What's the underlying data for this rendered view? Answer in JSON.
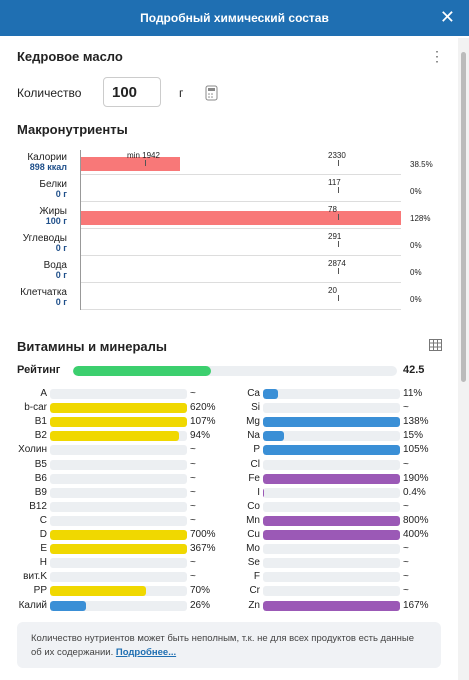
{
  "header": {
    "title": "Подробный химический состав"
  },
  "product": {
    "name": "Кедровое масло",
    "quantity_label": "Количество",
    "quantity": 100,
    "unit": "г"
  },
  "macros": {
    "title": "Макронутриенты",
    "bar_color": "#f87878",
    "rows": [
      {
        "name": "Калории",
        "amount": "898 ккал",
        "min": "min 1942",
        "norm": 2330,
        "percent": 38.5,
        "percent_label": "38.5%"
      },
      {
        "name": "Белки",
        "amount": "0 г",
        "norm": 117,
        "percent": 0,
        "percent_label": "0%"
      },
      {
        "name": "Жиры",
        "amount": "100 г",
        "norm": 78,
        "percent": 128,
        "percent_label": "128%"
      },
      {
        "name": "Углеводы",
        "amount": "0 г",
        "norm": 291,
        "percent": 0,
        "percent_label": "0%"
      },
      {
        "name": "Вода",
        "amount": "0 г",
        "norm": 2874,
        "percent": 0,
        "percent_label": "0%"
      },
      {
        "name": "Клетчатка",
        "amount": "0 г",
        "norm": 20,
        "percent": 0,
        "percent_label": "0%"
      }
    ]
  },
  "vitamins": {
    "title": "Витамины и минералы",
    "rating_label": "Рейтинг",
    "rating": 42.5,
    "rating_color": "#3ccf6e",
    "left": [
      {
        "name": "A",
        "label": "~"
      },
      {
        "name": "b-car",
        "percent": 620,
        "label": "620%",
        "color": "#f0d800"
      },
      {
        "name": "B1",
        "percent": 107,
        "label": "107%",
        "color": "#f0d800"
      },
      {
        "name": "B2",
        "percent": 94,
        "label": "94%",
        "color": "#f0d800"
      },
      {
        "name": "Холин",
        "label": "~"
      },
      {
        "name": "B5",
        "label": "~"
      },
      {
        "name": "B6",
        "label": "~"
      },
      {
        "name": "B9",
        "label": "~"
      },
      {
        "name": "B12",
        "label": "~"
      },
      {
        "name": "C",
        "label": "~"
      },
      {
        "name": "D",
        "percent": 700,
        "label": "700%",
        "color": "#f0d800"
      },
      {
        "name": "E",
        "percent": 367,
        "label": "367%",
        "color": "#f0d800"
      },
      {
        "name": "H",
        "label": "~"
      },
      {
        "name": "вит.K",
        "label": "~"
      },
      {
        "name": "PP",
        "percent": 70,
        "label": "70%",
        "color": "#f0d800"
      },
      {
        "name": "Калий",
        "percent": 26,
        "label": "26%",
        "color": "#3a8fd6"
      }
    ],
    "right": [
      {
        "name": "Ca",
        "percent": 11,
        "label": "11%",
        "color": "#3a8fd6"
      },
      {
        "name": "Si",
        "label": "~"
      },
      {
        "name": "Mg",
        "percent": 138,
        "label": "138%",
        "color": "#3a8fd6"
      },
      {
        "name": "Na",
        "percent": 15,
        "label": "15%",
        "color": "#3a8fd6"
      },
      {
        "name": "P",
        "percent": 105,
        "label": "105%",
        "color": "#3a8fd6"
      },
      {
        "name": "Cl",
        "label": "~"
      },
      {
        "name": "Fe",
        "percent": 190,
        "label": "190%",
        "color": "#9b59b6"
      },
      {
        "name": "I",
        "percent": 0.4,
        "label": "0.4%",
        "color": "#9b59b6"
      },
      {
        "name": "Co",
        "label": "~"
      },
      {
        "name": "Mn",
        "percent": 800,
        "label": "800%",
        "color": "#9b59b6"
      },
      {
        "name": "Cu",
        "percent": 400,
        "label": "400%",
        "color": "#9b59b6"
      },
      {
        "name": "Mo",
        "label": "~"
      },
      {
        "name": "Se",
        "label": "~"
      },
      {
        "name": "F",
        "label": "~"
      },
      {
        "name": "Cr",
        "label": "~"
      },
      {
        "name": "Zn",
        "percent": 167,
        "label": "167%",
        "color": "#9b59b6"
      }
    ]
  },
  "note": {
    "text": "Количество нутриентов может быть неполным, т.к. не для всех продуктов есть данные об их содержании.",
    "link": "Подробнее..."
  }
}
